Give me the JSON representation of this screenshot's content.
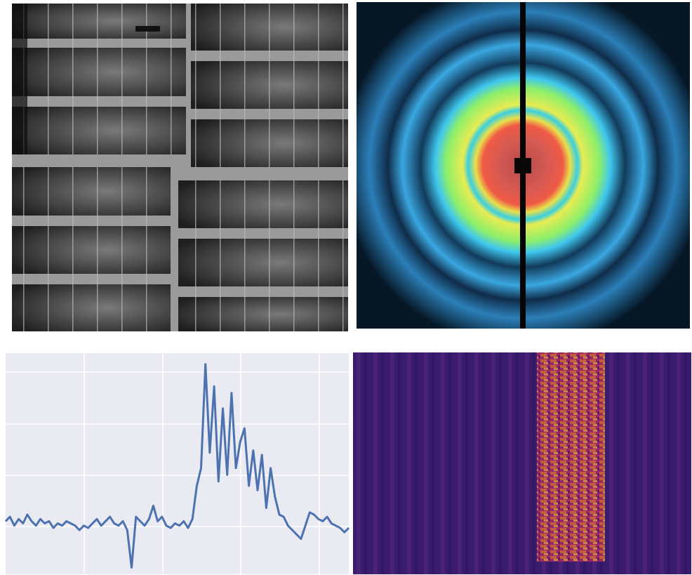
{
  "chart_data": {
    "type": "line",
    "values": [
      24,
      26,
      22,
      25,
      23,
      27,
      24,
      22,
      25,
      23,
      24,
      21,
      23,
      22,
      24,
      23,
      22,
      20,
      22,
      21,
      23,
      25,
      22,
      24,
      26,
      23,
      22,
      24,
      20,
      3,
      26,
      24,
      22,
      25,
      31,
      24,
      26,
      22,
      21,
      23,
      22,
      24,
      21,
      25,
      40,
      48,
      95,
      55,
      85,
      42,
      75,
      45,
      82,
      48,
      60,
      66,
      40,
      56,
      38,
      54,
      30,
      48,
      35,
      27,
      26,
      22,
      20,
      18,
      16,
      22,
      28,
      27,
      25,
      24,
      26,
      23,
      22,
      21,
      19,
      21
    ],
    "ylim": [
      0,
      100
    ],
    "color": "#4c72b0",
    "grid": true
  }
}
